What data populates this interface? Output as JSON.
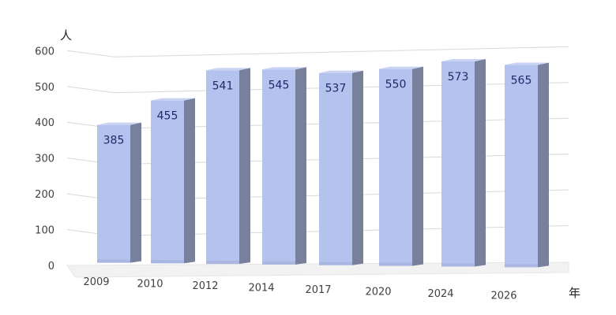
{
  "chart_data": {
    "type": "bar",
    "categories": [
      "2009",
      "2010",
      "2012",
      "2014",
      "2017",
      "2020",
      "2024",
      "2026"
    ],
    "values": [
      385,
      455,
      541,
      545,
      537,
      550,
      573,
      565
    ],
    "data_labels": [
      "385",
      "455",
      "541",
      "545",
      "537",
      "550",
      "573",
      "565"
    ],
    "y_unit_label": "人",
    "x_unit_label": "年",
    "yticks": [
      "0",
      "100",
      "200",
      "300",
      "400",
      "500",
      "600"
    ],
    "ylim": [
      0,
      600
    ],
    "grid": true,
    "three_d": true,
    "colors": {
      "bar_front": "#b4c2ee",
      "bar_side": "#78809c",
      "bar_top": "#c9d3f3",
      "grid": "#d9d9d9",
      "label": "#1f2a6b"
    }
  }
}
